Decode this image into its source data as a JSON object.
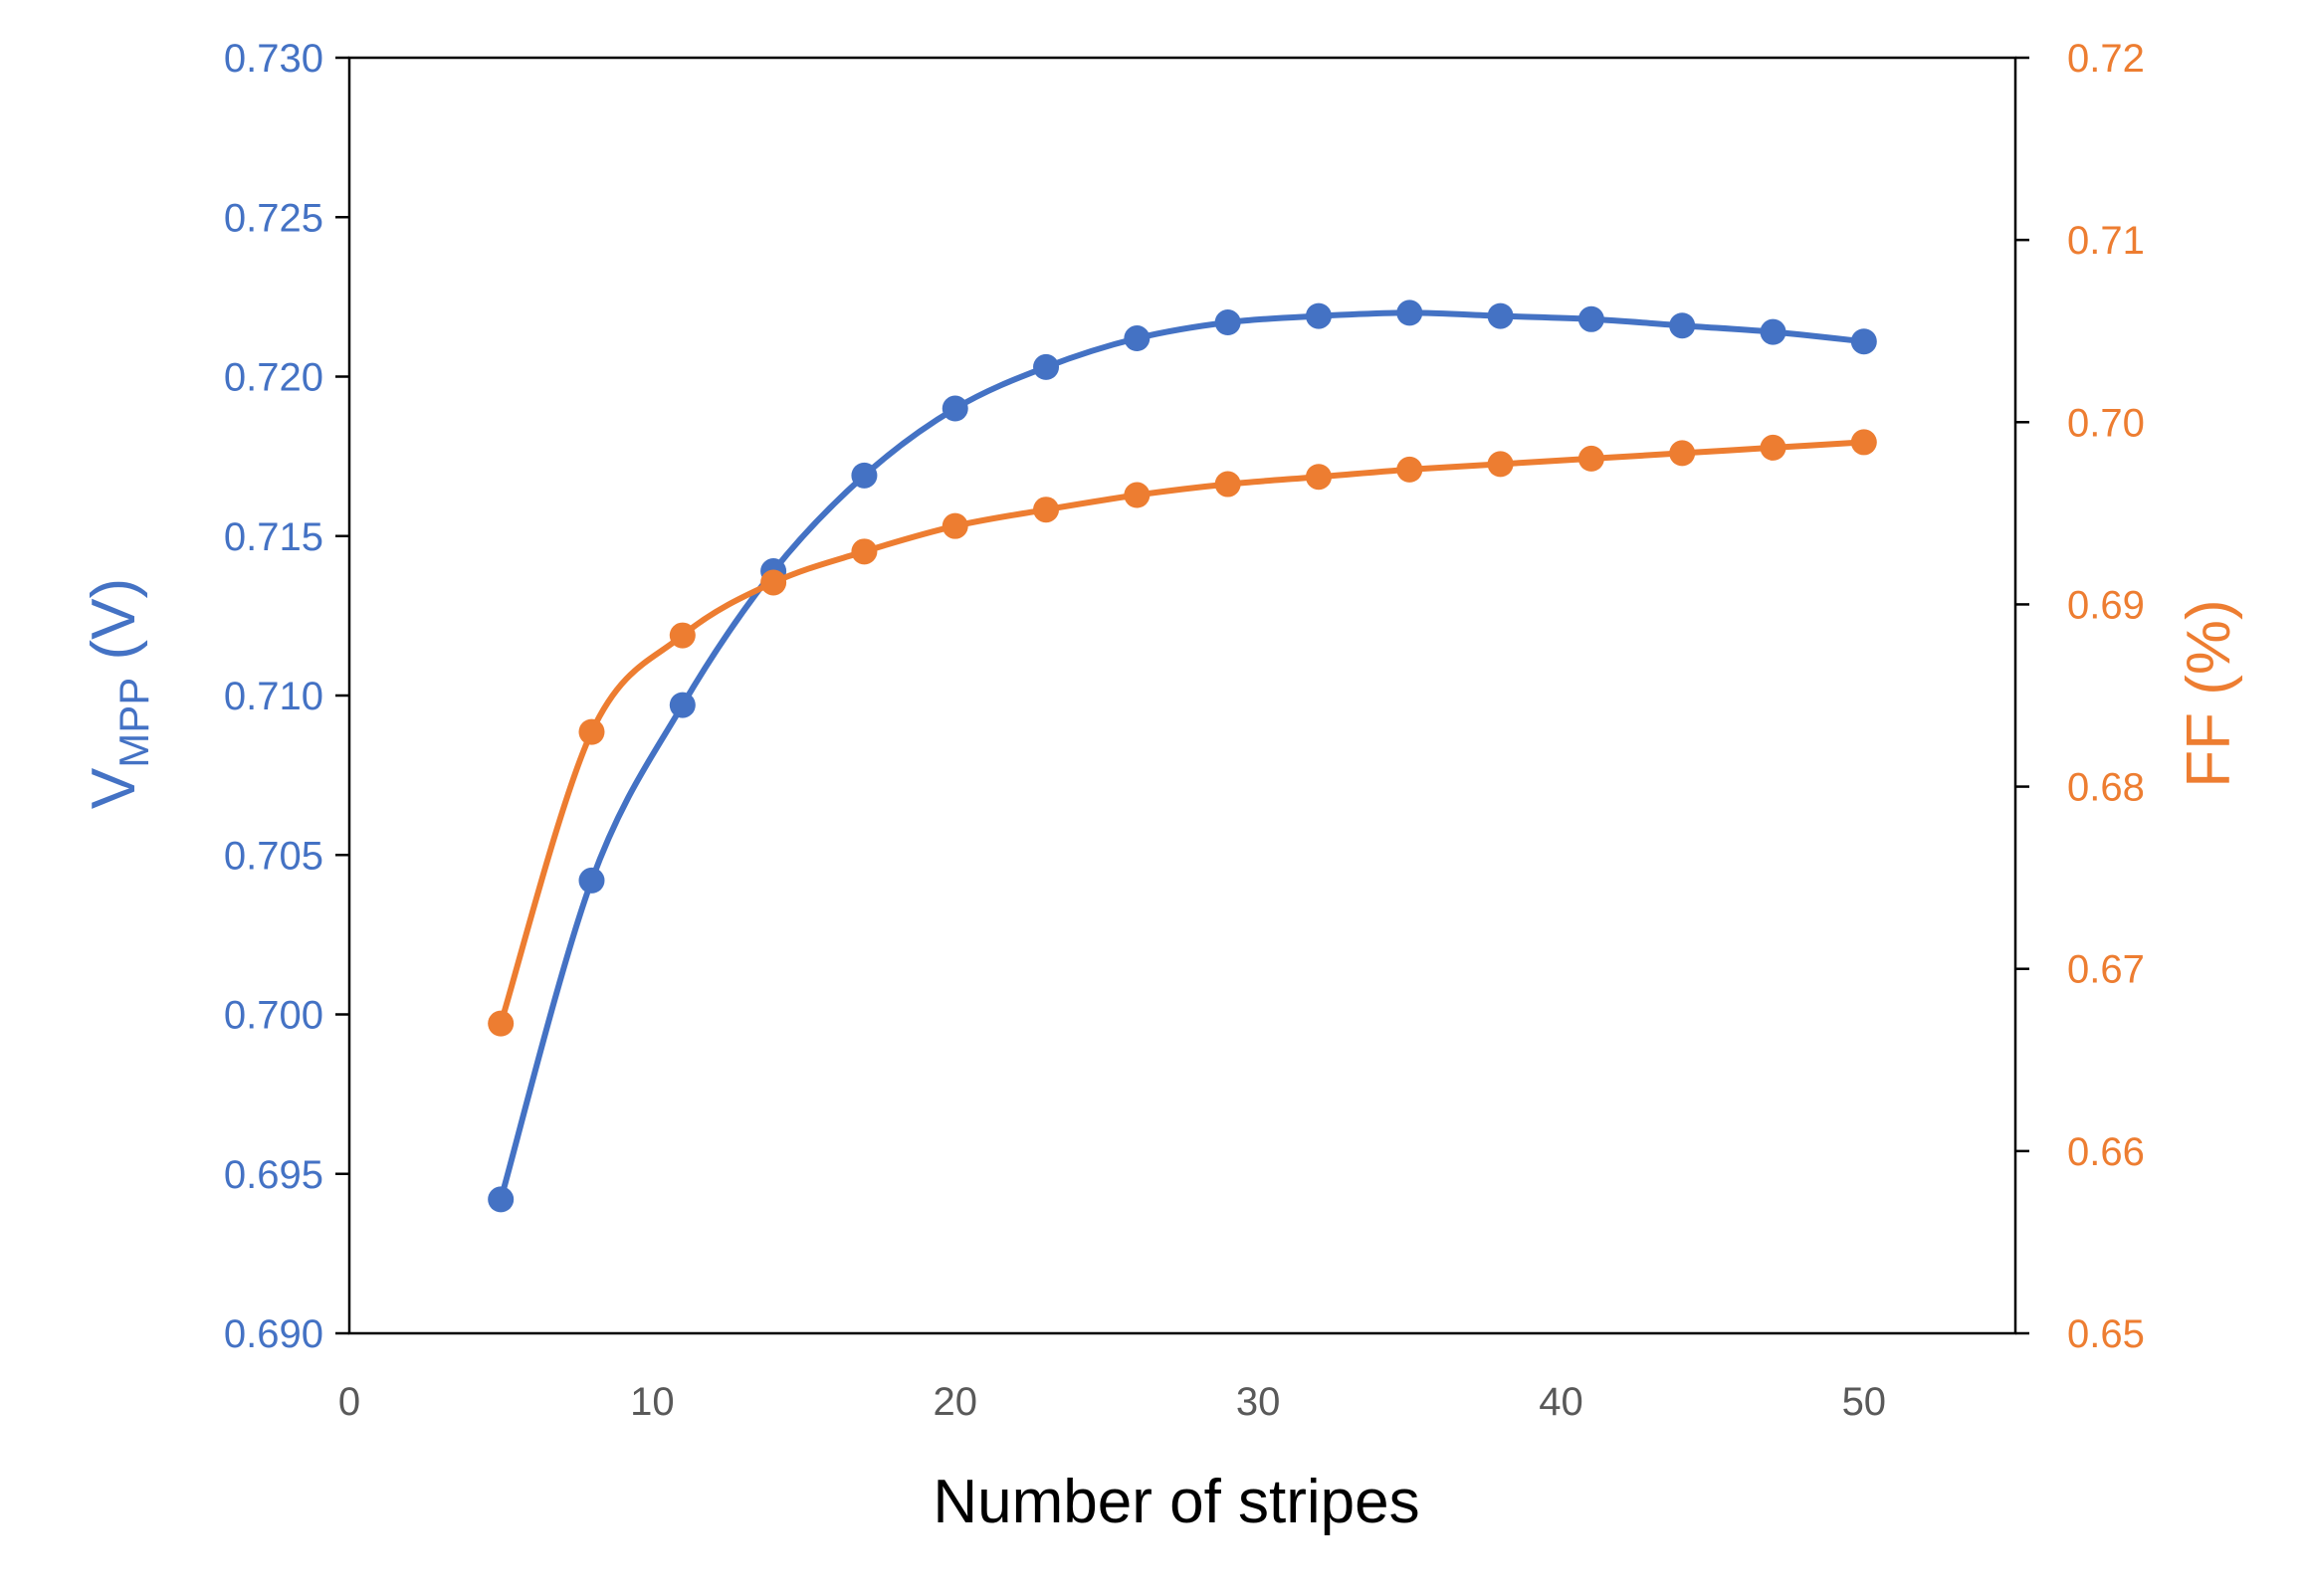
{
  "chart_data": {
    "type": "line",
    "xlabel": "Number of stripes",
    "ylabel_left_main": "V",
    "ylabel_left_sub": "MPP",
    "ylabel_left_unit": " (V)",
    "ylabel_right": "FF (%)",
    "xlim": [
      0,
      55
    ],
    "ylim_left": [
      0.69,
      0.73
    ],
    "ylim_right": [
      0.65,
      0.72
    ],
    "x_ticks": [
      "0",
      "10",
      "20",
      "30",
      "40",
      "50"
    ],
    "y_left_ticks": [
      "0.690",
      "0.695",
      "0.700",
      "0.705",
      "0.710",
      "0.715",
      "0.720",
      "0.725",
      "0.730"
    ],
    "y_right_ticks": [
      "0.65",
      "0.66",
      "0.67",
      "0.68",
      "0.69",
      "0.70",
      "0.71",
      "0.72"
    ],
    "grid": false,
    "x": [
      5,
      8,
      11,
      14,
      17,
      20,
      23,
      26,
      29,
      32,
      35,
      38,
      41,
      44,
      47,
      50
    ],
    "series": [
      {
        "axis": "left",
        "color": "#4472C4",
        "values": [
          0.6942,
          0.7042,
          0.7097,
          0.7139,
          0.7169,
          0.719,
          0.7203,
          0.7212,
          0.7217,
          0.7219,
          0.722,
          0.7219,
          0.7218,
          0.7216,
          0.7214,
          0.7211
        ]
      },
      {
        "axis": "right",
        "color": "#ED7D31",
        "values": [
          0.667,
          0.683,
          0.6883,
          0.6912,
          0.6929,
          0.6943,
          0.6952,
          0.696,
          0.6966,
          0.697,
          0.6974,
          0.6977,
          0.698,
          0.6983,
          0.6986,
          0.6989
        ]
      }
    ]
  }
}
